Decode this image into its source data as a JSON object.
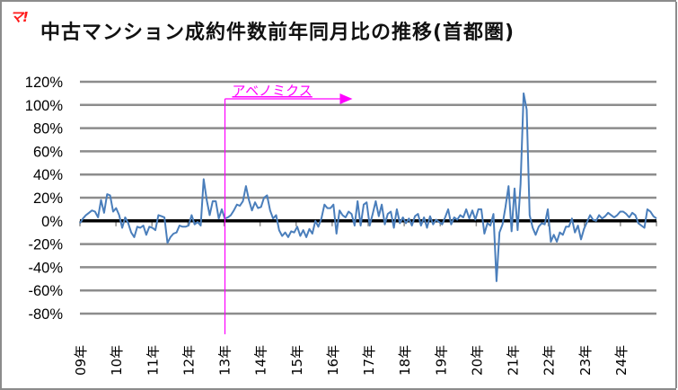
{
  "header": {
    "logo": "マ!",
    "title": "中古マンション成約件数前年同月比の推移(首都圏)"
  },
  "colors": {
    "series": "#4a7ebb",
    "zero_line": "#000000",
    "grid": "#8c8c8c",
    "annotation": "#ff00ff",
    "logo": "#ff1a1a",
    "border": "#8c8c8c"
  },
  "chart_data": {
    "type": "line",
    "title": "中古マンション成約件数前年同月比の推移(首都圏)",
    "xlabel": "",
    "ylabel": "",
    "ylim": [
      -80,
      120
    ],
    "yticks": [
      120,
      100,
      80,
      60,
      40,
      20,
      0,
      -20,
      -40,
      -60,
      -80
    ],
    "ytick_labels": [
      "120%",
      "100%",
      "80%",
      "60%",
      "40%",
      "20%",
      "0%",
      "-20%",
      "-40%",
      "-60%",
      "-80%"
    ],
    "categories": [
      "09年",
      "10年",
      "11年",
      "12年",
      "13年",
      "14年",
      "15年",
      "16年",
      "17年",
      "18年",
      "19年",
      "20年",
      "21年",
      "22年",
      "23年",
      "24年"
    ],
    "grid": true,
    "legend": "none",
    "frequency": "monthly",
    "annotations": [
      {
        "text": "アベノミクス",
        "x_year_index": 3.95,
        "type": "vertical-line-with-arrow"
      }
    ],
    "series": [
      {
        "name": "前年同月比",
        "unit": "%",
        "start": "2009-01",
        "values": [
          -2,
          2,
          5,
          7,
          9,
          8,
          3,
          18,
          7,
          23,
          22,
          8,
          11,
          5,
          -6,
          3,
          -2,
          -10,
          -14,
          -5,
          -6,
          -4,
          -12,
          -5,
          -6,
          -8,
          5,
          4,
          3,
          -19,
          -14,
          -11,
          -10,
          -4,
          -5,
          -5,
          -4,
          5,
          -3,
          -1,
          -4,
          36,
          18,
          5,
          17,
          17,
          2,
          10,
          2,
          3,
          5,
          9,
          14,
          13,
          17,
          30,
          18,
          9,
          16,
          11,
          12,
          20,
          22,
          9,
          2,
          5,
          -8,
          -13,
          -10,
          -14,
          -9,
          -10,
          -5,
          -13,
          -8,
          -14,
          -7,
          -11,
          0,
          -5,
          2,
          14,
          11,
          11,
          14,
          -11,
          9,
          5,
          3,
          8,
          6,
          -4,
          17,
          -4,
          14,
          16,
          -4,
          6,
          17,
          4,
          14,
          -3,
          6,
          8,
          -6,
          10,
          -2,
          3,
          -2,
          2,
          -4,
          4,
          6,
          -4,
          3,
          -6,
          4,
          -3,
          1,
          -1,
          -3,
          3,
          10,
          -3,
          3,
          1,
          5,
          3,
          10,
          2,
          9,
          1,
          10,
          10,
          -11,
          -2,
          -4,
          6,
          -52,
          -10,
          -3,
          12,
          30,
          -9,
          28,
          -8,
          32,
          110,
          96,
          5,
          -6,
          -12,
          -5,
          -2,
          -3,
          10,
          -18,
          -12,
          -18,
          -10,
          -12,
          -5,
          -5,
          2,
          -10,
          -4,
          -16,
          -7,
          -1,
          5,
          1,
          0,
          5,
          2,
          4,
          7,
          5,
          3,
          5,
          8,
          8,
          6,
          3,
          7,
          5,
          -2,
          -4,
          -6,
          10,
          8,
          4,
          2
        ]
      }
    ]
  }
}
